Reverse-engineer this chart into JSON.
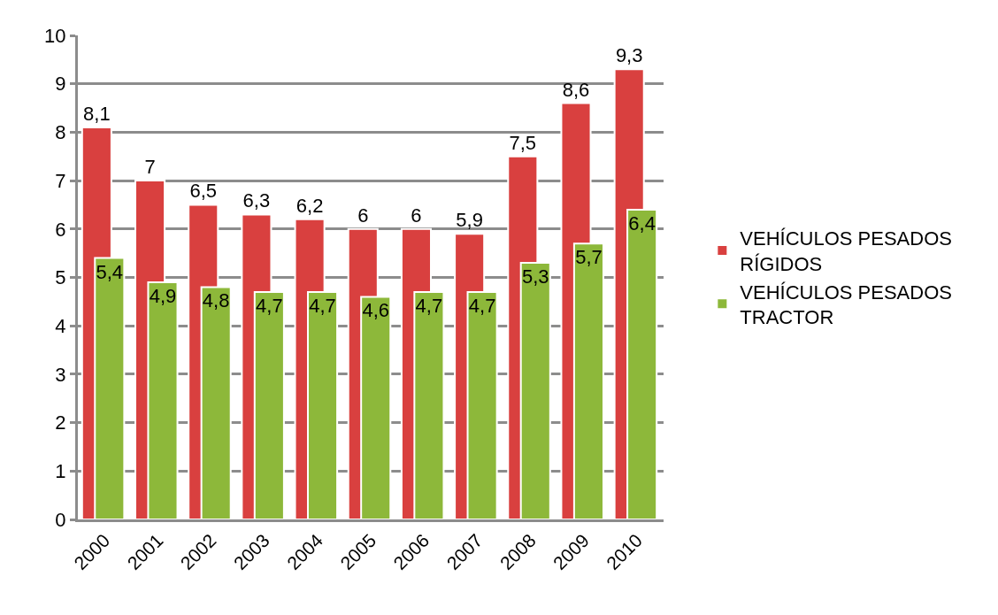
{
  "chart_data": {
    "type": "bar",
    "categories": [
      "2000",
      "2001",
      "2002",
      "2003",
      "2004",
      "2005",
      "2006",
      "2007",
      "2008",
      "2009",
      "2010"
    ],
    "series": [
      {
        "name": "VEHÍCULOS PESADOS RÍGIDOS",
        "color": "#d9403f",
        "values": [
          8.1,
          7,
          6.5,
          6.3,
          6.2,
          6,
          6,
          5.9,
          7.5,
          8.6,
          9.3
        ],
        "value_labels": [
          "8,1",
          "7",
          "6,5",
          "6,3",
          "6,2",
          "6",
          "6",
          "5,9",
          "7,5",
          "8,6",
          "9,3"
        ]
      },
      {
        "name": "VEHÍCULOS PESADOS TRACTOR",
        "color": "#8db83a",
        "values": [
          5.4,
          4.9,
          4.8,
          4.7,
          4.7,
          4.6,
          4.7,
          4.7,
          5.3,
          5.7,
          6.4
        ],
        "value_labels": [
          "5,4",
          "4,9",
          "4,8",
          "4,7",
          "4,7",
          "4,6",
          "4,7",
          "4,7",
          "5,3",
          "5,7",
          "6,4"
        ]
      }
    ],
    "ylim": [
      0,
      10
    ],
    "yticks": [
      0,
      1,
      2,
      3,
      4,
      5,
      6,
      7,
      8,
      9,
      10
    ],
    "grid": "y",
    "legend": "right"
  }
}
